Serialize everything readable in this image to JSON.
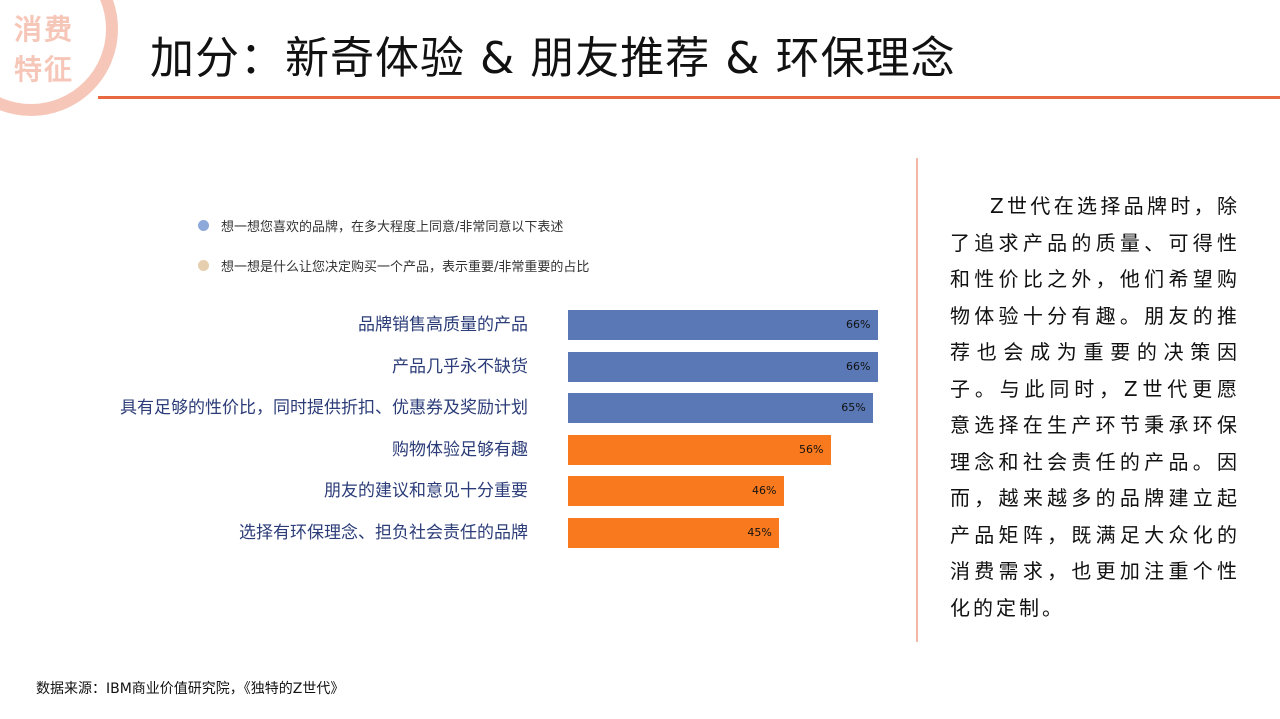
{
  "header": {
    "badge": "消费特征",
    "title": "加分：新奇体验 & 朋友推荐 & 环保理念"
  },
  "colors": {
    "blue": "#5a78b6",
    "orange": "#f97a1e",
    "accent": "#e8683f"
  },
  "chart_data": {
    "type": "bar",
    "orientation": "horizontal",
    "legend": [
      {
        "label": "想一想您喜欢的品牌，在多大程度上同意/非常同意以下表述",
        "color": "#8fa8da"
      },
      {
        "label": "想一想是什么让您决定购买一个产品，表示重要/非常重要的占比",
        "color": "#e6cfae"
      }
    ],
    "categories": [
      "品牌销售高质量的产品",
      "产品几乎永不缺货",
      "具有足够的性价比，同时提供折扣、优惠券及奖励计划",
      "购物体验足够有趣",
      "朋友的建议和意见十分重要",
      "选择有环保理念、担负社会责任的品牌"
    ],
    "values": [
      66,
      66,
      65,
      56,
      46,
      45
    ],
    "value_labels": [
      "66%",
      "66%",
      "65%",
      "56%",
      "46%",
      "45%"
    ],
    "bar_colors": [
      "#5a78b6",
      "#5a78b6",
      "#5a78b6",
      "#f97a1e",
      "#f97a1e",
      "#f97a1e"
    ],
    "xlim": [
      0,
      66
    ]
  },
  "side_text": "Z世代在选择品牌时，除了追求产品的质量、可得性和性价比之外，他们希望购物体验十分有趣。朋友的推荐也会成为重要的决策因子。与此同时，Z世代更愿意选择在生产环节秉承环保理念和社会责任的产品。因而，越来越多的品牌建立起产品矩阵，既满足大众化的消费需求，也更加注重个性化的定制。",
  "source": "数据来源：IBM商业价值研究院，《独特的Z世代》"
}
